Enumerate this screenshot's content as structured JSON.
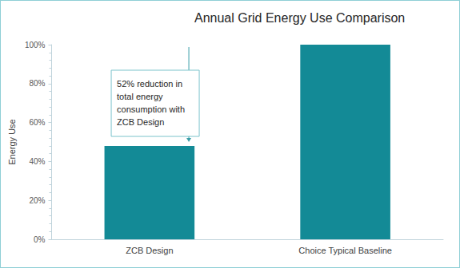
{
  "chart_data": {
    "type": "bar",
    "title": "Annual Grid Energy Use Comparison",
    "y_label": "Energy Use",
    "categories": [
      "ZCB Design",
      "Choice Typical Baseline"
    ],
    "values": [
      48,
      100
    ],
    "color": "#138a96",
    "ylim": [
      0,
      100
    ],
    "yticks": [
      {
        "value": 0,
        "label": "0%"
      },
      {
        "value": 20,
        "label": "20%"
      },
      {
        "value": 40,
        "label": "40%"
      },
      {
        "value": 60,
        "label": "60%"
      },
      {
        "value": 80,
        "label": "80%"
      },
      {
        "value": 100,
        "label": "100%"
      }
    ],
    "grid": false,
    "annotation": "52% reduction in total energy consumption with ZCB Design"
  }
}
